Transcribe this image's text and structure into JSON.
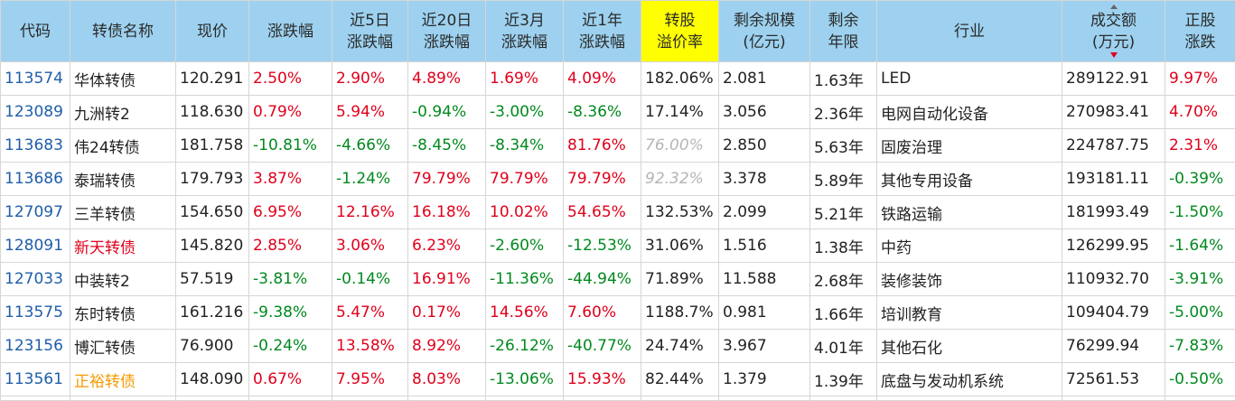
{
  "headers": [
    {
      "key": "code",
      "l1": "代码",
      "l2": ""
    },
    {
      "key": "name",
      "l1": "转债名称",
      "l2": ""
    },
    {
      "key": "price",
      "l1": "现价",
      "l2": ""
    },
    {
      "key": "chg",
      "l1": "涨跌幅",
      "l2": ""
    },
    {
      "key": "chg5d",
      "l1": "近5日",
      "l2": "涨跌幅"
    },
    {
      "key": "chg20d",
      "l1": "近20日",
      "l2": "涨跌幅"
    },
    {
      "key": "chg3m",
      "l1": "近3月",
      "l2": "涨跌幅"
    },
    {
      "key": "chg1y",
      "l1": "近1年",
      "l2": "涨跌幅"
    },
    {
      "key": "premium",
      "l1": "转股",
      "l2": "溢价率"
    },
    {
      "key": "scale",
      "l1": "剩余规模",
      "l2": "(亿元)"
    },
    {
      "key": "term",
      "l1": "剩余",
      "l2": "年限"
    },
    {
      "key": "industry",
      "l1": "行业",
      "l2": ""
    },
    {
      "key": "turnover",
      "l1": "成交额",
      "l2": "(万元)"
    },
    {
      "key": "stockchg",
      "l1": "正股",
      "l2": "涨跌"
    }
  ],
  "colors": {
    "up": "#e0001b",
    "down": "#00891e",
    "code": "#1f5ea8",
    "header_bg": "#9dd1ef",
    "highlight": "#ffff00",
    "special_name": "#f59a00"
  },
  "sort": {
    "column": "turnover",
    "direction": "desc"
  },
  "rows": [
    {
      "code": "113574",
      "name": "华体转债",
      "name_style": "",
      "price": "120.291",
      "chg": "2.50%",
      "chg5d": "2.90%",
      "chg20d": "4.89%",
      "chg3m": "1.69%",
      "chg1y": "4.09%",
      "premium": "182.06%",
      "premium_style": "",
      "scale": "2.081",
      "term": "1.63年",
      "industry": "LED",
      "turnover": "289122.91",
      "stockchg": "9.97%"
    },
    {
      "code": "123089",
      "name": "九洲转2",
      "name_style": "",
      "price": "118.630",
      "chg": "0.79%",
      "chg5d": "5.94%",
      "chg20d": "-0.94%",
      "chg3m": "-3.00%",
      "chg1y": "-8.36%",
      "premium": "17.14%",
      "premium_style": "",
      "scale": "3.056",
      "term": "2.36年",
      "industry": "电网自动化设备",
      "turnover": "270983.41",
      "stockchg": "4.70%"
    },
    {
      "code": "113683",
      "name": "伟24转债",
      "name_style": "",
      "price": "181.758",
      "chg": "-10.81%",
      "chg5d": "-4.66%",
      "chg20d": "-8.45%",
      "chg3m": "-8.34%",
      "chg1y": "81.76%",
      "premium": "76.00%",
      "premium_style": "dim",
      "scale": "2.850",
      "term": "5.63年",
      "industry": "固废治理",
      "turnover": "224787.75",
      "stockchg": "2.31%"
    },
    {
      "code": "113686",
      "name": "泰瑞转债",
      "name_style": "",
      "price": "179.793",
      "chg": "3.87%",
      "chg5d": "-1.24%",
      "chg20d": "79.79%",
      "chg3m": "79.79%",
      "chg1y": "79.79%",
      "premium": "92.32%",
      "premium_style": "dim",
      "scale": "3.378",
      "term": "5.89年",
      "industry": "其他专用设备",
      "turnover": "193181.11",
      "stockchg": "-0.39%"
    },
    {
      "code": "127097",
      "name": "三羊转债",
      "name_style": "",
      "price": "154.650",
      "chg": "6.95%",
      "chg5d": "12.16%",
      "chg20d": "16.18%",
      "chg3m": "10.02%",
      "chg1y": "54.65%",
      "premium": "132.53%",
      "premium_style": "",
      "scale": "2.099",
      "term": "5.21年",
      "industry": "铁路运输",
      "turnover": "181993.49",
      "stockchg": "-1.50%"
    },
    {
      "code": "128091",
      "name": "新天转债",
      "name_style": "up",
      "price": "145.820",
      "chg": "2.85%",
      "chg5d": "3.06%",
      "chg20d": "6.23%",
      "chg3m": "-2.60%",
      "chg1y": "-12.53%",
      "premium": "31.06%",
      "premium_style": "",
      "scale": "1.516",
      "term": "1.38年",
      "industry": "中药",
      "turnover": "126299.95",
      "stockchg": "-1.64%"
    },
    {
      "code": "127033",
      "name": "中装转2",
      "name_style": "",
      "price": "57.519",
      "chg": "-3.81%",
      "chg5d": "-0.14%",
      "chg20d": "16.91%",
      "chg3m": "-11.36%",
      "chg1y": "-44.94%",
      "premium": "71.89%",
      "premium_style": "",
      "scale": "11.588",
      "term": "2.68年",
      "industry": "装修装饰",
      "turnover": "110932.70",
      "stockchg": "-3.91%"
    },
    {
      "code": "113575",
      "name": "东时转债",
      "name_style": "",
      "price": "161.216",
      "chg": "-9.38%",
      "chg5d": "5.47%",
      "chg20d": "0.17%",
      "chg3m": "14.56%",
      "chg1y": "7.60%",
      "premium": "1188.7%",
      "premium_style": "",
      "scale": "0.981",
      "term": "1.66年",
      "industry": "培训教育",
      "turnover": "109404.79",
      "stockchg": "-5.00%"
    },
    {
      "code": "123156",
      "name": "博汇转债",
      "name_style": "",
      "price": "76.900",
      "chg": "-0.24%",
      "chg5d": "13.58%",
      "chg20d": "8.92%",
      "chg3m": "-26.12%",
      "chg1y": "-40.77%",
      "premium": "24.74%",
      "premium_style": "",
      "scale": "3.967",
      "term": "4.01年",
      "industry": "其他石化",
      "turnover": "76299.94",
      "stockchg": "-7.83%"
    },
    {
      "code": "113561",
      "name": "正裕转债",
      "name_style": "orange",
      "price": "148.090",
      "chg": "0.67%",
      "chg5d": "7.95%",
      "chg20d": "8.03%",
      "chg3m": "-13.06%",
      "chg1y": "15.93%",
      "premium": "82.44%",
      "premium_style": "",
      "scale": "1.379",
      "term": "1.39年",
      "industry": "底盘与发动机系统",
      "turnover": "72561.53",
      "stockchg": "-0.50%"
    }
  ]
}
